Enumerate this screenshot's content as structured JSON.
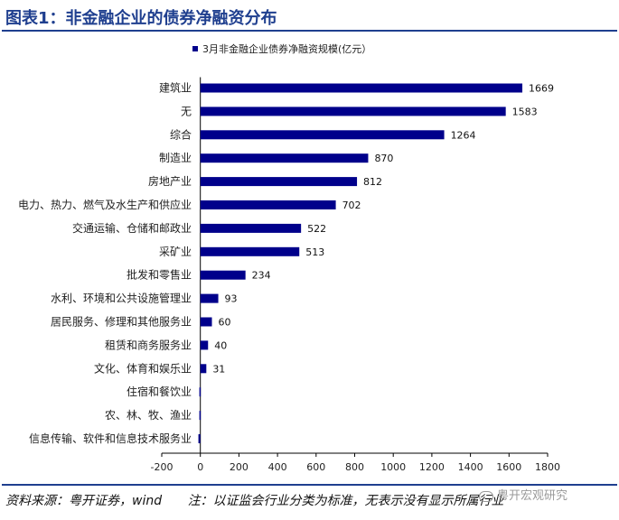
{
  "header": {
    "title": "图表1：非金融企业的债券净融资分布"
  },
  "colors": {
    "accent": "#1f3f8f",
    "bar": "#00008b"
  },
  "chart_data": {
    "type": "bar",
    "orientation": "horizontal",
    "categories": [
      "建筑业",
      "无",
      "综合",
      "制造业",
      "房地产业",
      "电力、热力、燃气及水生产和供应业",
      "交通运输、仓储和邮政业",
      "采矿业",
      "批发和零售业",
      "水利、环境和公共设施管理业",
      "居民服务、修理和其他服务业",
      "租赁和商务服务业",
      "文化、体育和娱乐业",
      "住宿和餐饮业",
      "农、林、牧、渔业",
      "信息传输、软件和信息技术服务业"
    ],
    "series": [
      {
        "name": "3月非金融企业债券净融资规模(亿元）",
        "values": [
          1669,
          1583,
          1264,
          870,
          812,
          702,
          522,
          513,
          234,
          93,
          60,
          40,
          31,
          -5,
          -5,
          -10
        ]
      }
    ],
    "data_labels": [
      "1669",
      "1583",
      "1264",
      "870",
      "812",
      "702",
      "522",
      "513",
      "234",
      "93",
      "60",
      "40",
      "31",
      "",
      "",
      ""
    ],
    "xlim": [
      -200,
      1800
    ],
    "xticks": [
      -200,
      0,
      200,
      400,
      600,
      800,
      1000,
      1200,
      1400,
      1600,
      1800
    ],
    "legend_position": "top",
    "grid": false
  },
  "footer": {
    "source": "资料来源：粤开证券，wind",
    "note": "注：以证监会行业分类为标准，无表示没有显示所属行业"
  },
  "watermark": {
    "text": "粤开宏观研究"
  }
}
